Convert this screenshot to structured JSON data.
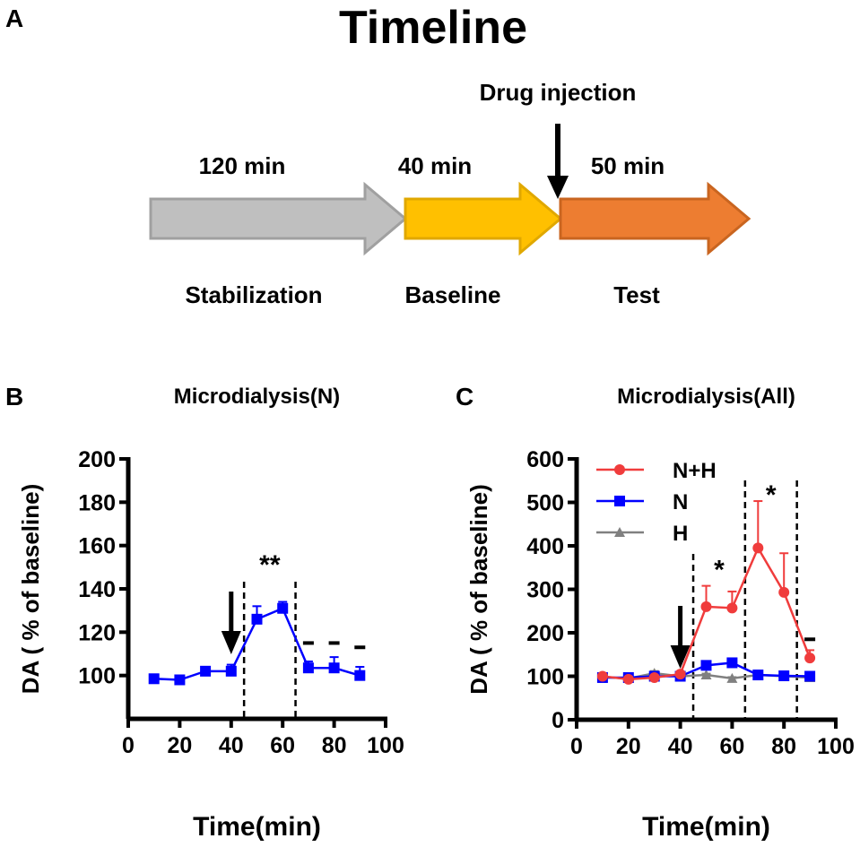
{
  "panel_labels": [
    "A",
    "B",
    "C"
  ],
  "timeline": {
    "title": "Timeline",
    "injection_label": "Drug injection",
    "phases": [
      {
        "name": "Stabilization",
        "duration": "120 min",
        "color": "#bfbfbf",
        "stroke": "#a0a0a0"
      },
      {
        "name": "Baseline",
        "duration": "40 min",
        "color": "#ffc000",
        "stroke": "#e0a800"
      },
      {
        "name": "Test",
        "duration": "50 min",
        "color": "#ed7d31",
        "stroke": "#c96520"
      }
    ]
  },
  "chart_data": [
    {
      "type": "line",
      "title": "Microdialysis(N)",
      "xlabel": "Time(min)",
      "ylabel": "DA ( % of baseline)",
      "xlim": [
        0,
        100
      ],
      "ylim": [
        80,
        200
      ],
      "xticks": [
        0,
        20,
        40,
        60,
        80,
        100
      ],
      "yticks": [
        100,
        120,
        140,
        160,
        180,
        200
      ],
      "injection_time": 40,
      "dashed_lines": [
        45,
        65
      ],
      "annotations": [
        {
          "text": "**",
          "x": 55,
          "y": 152
        },
        {
          "text": "-",
          "x": 70,
          "y": 115
        },
        {
          "text": "-",
          "x": 80,
          "y": 115
        },
        {
          "text": "-",
          "x": 90,
          "y": 113
        }
      ],
      "series": [
        {
          "name": "N",
          "color": "#0000ff",
          "marker": "square",
          "x": [
            10,
            20,
            30,
            40,
            50,
            60,
            70,
            80,
            90
          ],
          "y": [
            98.5,
            98,
            102,
            102,
            126,
            131,
            103.5,
            103.5,
            100
          ],
          "err": [
            2,
            1,
            2,
            3,
            6,
            3,
            3,
            5,
            4
          ]
        }
      ]
    },
    {
      "type": "line",
      "title": "Microdialysis(All)",
      "xlabel": "Time(min)",
      "ylabel": "DA ( % of baseline)",
      "xlim": [
        0,
        100
      ],
      "ylim": [
        0,
        600
      ],
      "xticks": [
        0,
        20,
        40,
        60,
        80,
        100
      ],
      "yticks": [
        0,
        100,
        200,
        300,
        400,
        500,
        600
      ],
      "injection_time": 40,
      "dashed_lines": [
        45,
        65,
        85
      ],
      "annotations": [
        {
          "text": "*",
          "x": 55,
          "y": 350
        },
        {
          "text": "*",
          "x": 75,
          "y": 522
        },
        {
          "text": "-",
          "x": 90,
          "y": 185
        }
      ],
      "legend": "top-left",
      "series": [
        {
          "name": "N+H",
          "color": "#f03c3c",
          "marker": "circle",
          "x": [
            10,
            20,
            30,
            40,
            50,
            60,
            70,
            80,
            90
          ],
          "y": [
            100,
            93,
            97,
            105,
            260,
            257,
            395,
            293,
            142
          ],
          "err": [
            5,
            5,
            5,
            5,
            48,
            38,
            108,
            90,
            18
          ]
        },
        {
          "name": "N",
          "color": "#0000ff",
          "marker": "square",
          "x": [
            10,
            20,
            30,
            40,
            50,
            60,
            70,
            80,
            90
          ],
          "y": [
            97,
            97,
            100,
            100,
            125,
            131,
            103,
            101,
            100
          ],
          "err": [
            3,
            3,
            3,
            3,
            5,
            5,
            3,
            3,
            3
          ]
        },
        {
          "name": "H",
          "color": "#808080",
          "marker": "triangle",
          "x": [
            10,
            20,
            30,
            40,
            50,
            60,
            70,
            80,
            90
          ],
          "y": [
            98,
            95,
            107,
            100,
            103,
            95,
            103,
            100,
            97
          ],
          "err": [
            3,
            3,
            5,
            3,
            3,
            3,
            3,
            3,
            3
          ]
        }
      ]
    }
  ]
}
